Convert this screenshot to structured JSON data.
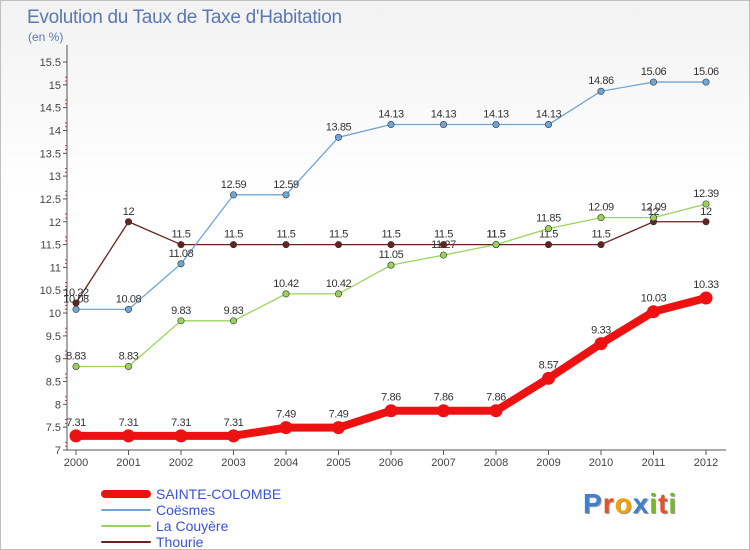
{
  "title": "Evolution du Taux de Taxe d'Habitation",
  "unit": "(en %)",
  "logo": {
    "text": "Proxiti",
    "letter_colors": [
      "#3f7fcf",
      "#e8502a",
      "#f2a200",
      "#3f7fcf",
      "#76b82a",
      "#e8502a",
      "#76b82a"
    ]
  },
  "chart_data": {
    "type": "line",
    "title": "Evolution du Taux de Taxe d'Habitation",
    "ylabel": "(en %)",
    "xlabel": "",
    "ylim": [
      7,
      15.5
    ],
    "yticks": [
      "7",
      "7.5",
      "8",
      "8.5",
      "9",
      "9.5",
      "10",
      "10.5",
      "11",
      "11.5",
      "12",
      "12.5",
      "13",
      "13.5",
      "14",
      "14.5",
      "15",
      "15.5"
    ],
    "categories": [
      "2000",
      "2001",
      "2002",
      "2003",
      "2004",
      "2005",
      "2006",
      "2007",
      "2008",
      "2009",
      "2010",
      "2011",
      "2012"
    ],
    "grid": false,
    "legend_position": "bottom-left",
    "series": [
      {
        "name": "Thourie",
        "color": "#6b2020",
        "values": [
          10.22,
          12,
          11.5,
          11.5,
          11.5,
          11.5,
          11.5,
          11.5,
          11.5,
          11.5,
          11.5,
          12,
          12
        ],
        "labels": [
          "10.22",
          "12",
          "11.5",
          "11.5",
          "11.5",
          "11.5",
          "11.5",
          "11.5",
          "11.5",
          "11.5",
          "11.5",
          "12",
          "12"
        ]
      },
      {
        "name": "La Couyère",
        "color": "#99d45a",
        "values": [
          8.83,
          8.83,
          9.83,
          9.83,
          10.42,
          10.42,
          11.05,
          11.27,
          11.5,
          11.85,
          12.09,
          12.09,
          12.39
        ],
        "labels": [
          "8.83",
          "8.83",
          "9.83",
          "9.83",
          "10.42",
          "10.42",
          "11.05",
          "11.27",
          "11.5",
          "11.85",
          "12.09",
          "12.09",
          "12.39"
        ]
      },
      {
        "name": "Coësmes",
        "color": "#6fa6d6",
        "values": [
          10.08,
          10.08,
          11.08,
          12.59,
          12.59,
          13.85,
          14.13,
          14.13,
          14.13,
          14.13,
          14.86,
          15.06,
          15.06
        ],
        "labels": [
          "10.08",
          "10.08",
          "11.08",
          "12.59",
          "12.59",
          "13.85",
          "14.13",
          "14.13",
          "14.13",
          "14.13",
          "14.86",
          "15.06",
          "15.06"
        ]
      },
      {
        "name": "SAINTE-COLOMBE",
        "color": "#ee1111",
        "values": [
          7.31,
          7.31,
          7.31,
          7.31,
          7.49,
          7.49,
          7.86,
          7.86,
          7.86,
          8.57,
          9.33,
          10.03,
          10.33
        ],
        "labels": [
          "7.31",
          "7.31",
          "7.31",
          "7.31",
          "7.49",
          "7.49",
          "7.86",
          "7.86",
          "7.86",
          "8.57",
          "9.33",
          "10.03",
          "10.33"
        ]
      }
    ]
  },
  "legend": [
    {
      "name": "SAINTE-COLOMBE",
      "color": "#ee1111",
      "text_color": "#3a52d6"
    },
    {
      "name": "Coësmes",
      "color": "#6fa6d6",
      "text_color": "#3a52d6"
    },
    {
      "name": "La Couyère",
      "color": "#99d45a",
      "text_color": "#3a52d6"
    },
    {
      "name": "Thourie",
      "color": "#6b2020",
      "text_color": "#3a52d6"
    }
  ]
}
